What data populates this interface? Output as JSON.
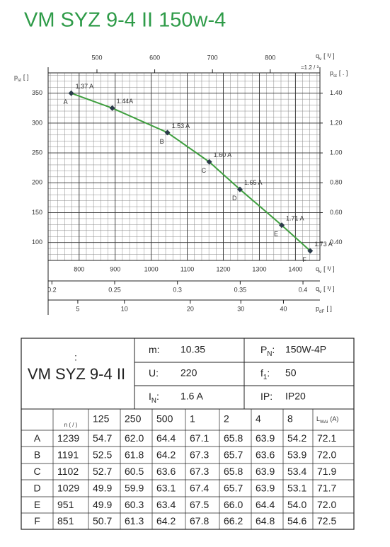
{
  "title": "VM SYZ 9-4 II 150w-4",
  "chart_data": {
    "type": "line",
    "y_label": {
      "symbol": "p",
      "sub": "st",
      "unit": "[   ]"
    },
    "y2_label": {
      "symbol": "p",
      "sub": "st",
      "unit": "[   .   ]"
    },
    "x_label": {
      "symbol": "q",
      "sub": "v",
      "unit": "[  ³/  ]"
    },
    "x2_label": {
      "symbol": "q",
      "sub": "v",
      "unit": "[   ³/   ]",
      "note": "=1.2  /  ³"
    },
    "x3_label": {
      "symbol": "q",
      "sub": "v",
      "unit": "[  ³/  ]"
    },
    "x4_label": {
      "symbol": "p",
      "sub": "dF",
      "unit": "[   ]"
    },
    "x": [
      778,
      892,
      1045,
      1161,
      1246,
      1362,
      1441
    ],
    "values": [
      350,
      325,
      284,
      235,
      189,
      129,
      86
    ],
    "color": "#3f9f3f",
    "marker_color": "#2b3b4a",
    "point_labels": [
      "A",
      null,
      "B",
      "C",
      "D",
      "E",
      "F"
    ],
    "annotations": [
      "1.37 A",
      "1.44A",
      "1.53 A",
      "1.60 A",
      "1.65 A",
      "1.71 A",
      "1.73 A"
    ],
    "xlim": [
      714,
      1468
    ],
    "xticks": [
      800,
      900,
      1000,
      1100,
      1200,
      1300,
      1400
    ],
    "ylim": [
      70,
      384
    ],
    "yticks": [
      100,
      150,
      200,
      250,
      300,
      350
    ],
    "y2lim": [
      0.28,
      1.536
    ],
    "y2ticks": [
      {
        "value": 1.4,
        "label": "1.40"
      },
      {
        "value": 1.2,
        "label": "1.20"
      },
      {
        "value": 1.0,
        "label": "1.00"
      },
      {
        "value": 0.8,
        "label": "0.80"
      },
      {
        "value": 0.6,
        "label": "0.60"
      },
      {
        "value": 0.4,
        "label": "0.40"
      }
    ],
    "x2lim": [
      415.5,
      886
    ],
    "x2ticks": [
      500,
      600,
      700,
      800
    ],
    "x3lim": [
      0.197,
      0.4135
    ],
    "x3ticks": [
      0.2,
      0.25,
      0.3,
      0.35,
      0.4
    ],
    "x4lim": [
      2.71,
      49.7
    ],
    "x4ticks": [
      5,
      10,
      20,
      30,
      40
    ],
    "x4scale": "sqrt",
    "grid": true
  },
  "specs": {
    "prefix": ":",
    "model": "VM SYZ 9-4 II",
    "rows": [
      [
        {
          "label": "m",
          "after": ":",
          "value": "10.35"
        },
        {
          "label": "P",
          "sub": "N",
          "after": ":",
          "value": "150W-4P"
        }
      ],
      [
        {
          "label": "U",
          "after": ":",
          "value": "220"
        },
        {
          "label": "f",
          "sub": "1",
          "after": ":",
          "value": "50"
        }
      ],
      [
        {
          "label": "I",
          "sub": "N",
          "after": ":",
          "value": "1.6  A"
        },
        {
          "label": "IP",
          "after": ":",
          "value": "IP20"
        }
      ]
    ]
  },
  "noise_table": {
    "header": [
      "n (  /  )",
      "125",
      "250",
      "500",
      "1",
      "2",
      "4",
      "8"
    ],
    "level_label": {
      "symbol": "L",
      "sub": "WAi",
      "unit": "(A)"
    },
    "rows": [
      [
        "A",
        "1239",
        "54.7",
        "62.0",
        "64.4",
        "67.1",
        "65.8",
        "63.9",
        "54.2",
        "72.1"
      ],
      [
        "B",
        "1191",
        "52.5",
        "61.8",
        "64.2",
        "67.3",
        "65.7",
        "63.6",
        "53.9",
        "72.0"
      ],
      [
        "C",
        "1102",
        "52.7",
        "60.5",
        "63.6",
        "67.3",
        "65.8",
        "63.9",
        "53.4",
        "71.9"
      ],
      [
        "D",
        "1029",
        "49.9",
        "59.9",
        "63.1",
        "67.4",
        "65.7",
        "63.9",
        "53.1",
        "71.7"
      ],
      [
        "E",
        "951",
        "49.9",
        "60.3",
        "63.4",
        "67.5",
        "66.0",
        "64.4",
        "54.0",
        "72.0"
      ],
      [
        "F",
        "851",
        "50.7",
        "61.3",
        "64.2",
        "67.8",
        "66.2",
        "64.8",
        "54.6",
        "72.5"
      ]
    ]
  }
}
